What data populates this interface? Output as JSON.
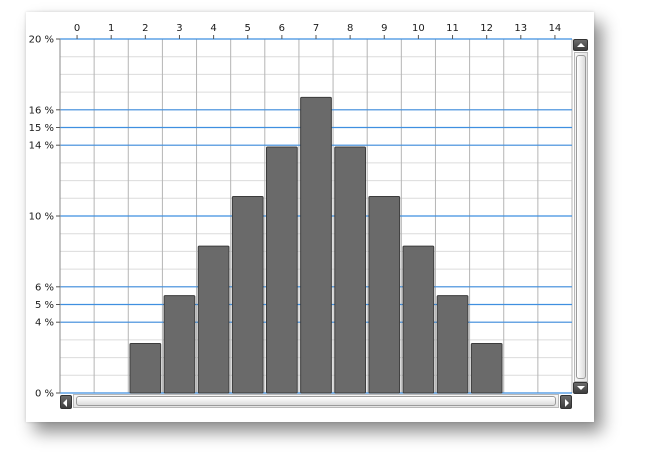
{
  "chart_data": {
    "type": "bar",
    "x_tick_labels": [
      "0",
      "1",
      "2",
      "3",
      "4",
      "5",
      "6",
      "7",
      "8",
      "9",
      "10",
      "11",
      "12",
      "13",
      "14"
    ],
    "categories": [
      0,
      1,
      2,
      3,
      4,
      5,
      6,
      7,
      8,
      9,
      10,
      11,
      12,
      13,
      14
    ],
    "values": [
      0,
      0,
      2.8,
      5.5,
      8.3,
      11.1,
      13.9,
      16.7,
      13.9,
      11.1,
      8.3,
      5.5,
      2.8,
      0,
      0
    ],
    "y_tick_values": [
      0,
      4,
      5,
      6,
      10,
      14,
      15,
      16,
      20
    ],
    "y_tick_labels": [
      "0 %",
      "4 %",
      "5 %",
      "6 %",
      "10 %",
      "14 %",
      "15 %",
      "16 %",
      "20 %"
    ],
    "ylim": [
      0,
      20
    ],
    "xlim": [
      0,
      14
    ],
    "x_axis_position": "top",
    "grid": true,
    "minor_grid_step": 1,
    "colors": {
      "bar": "#6a6a6a",
      "bar_stroke": "#3c3c3c",
      "major_grid": "#3f8fe0",
      "minor_grid": "#dcdcdc",
      "vertical_grid": "#b5b5b5"
    }
  }
}
